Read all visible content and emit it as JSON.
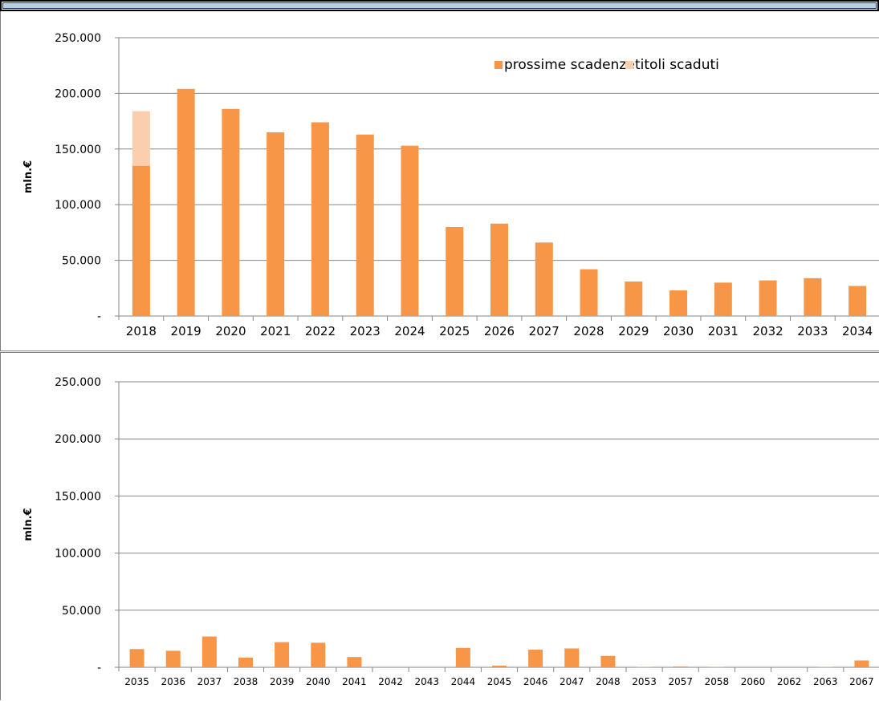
{
  "chart_data": [
    {
      "type": "bar",
      "stacked": true,
      "ylabel": "mln.€",
      "ylim": [
        0,
        250000
      ],
      "yticks": [
        "-",
        "50.000",
        "100.000",
        "150.000",
        "200.000",
        "250.000"
      ],
      "grid": true,
      "legend_position": "top-right",
      "categories": [
        "2018",
        "2019",
        "2020",
        "2021",
        "2022",
        "2023",
        "2024",
        "2025",
        "2026",
        "2027",
        "2028",
        "2029",
        "2030",
        "2031",
        "2032",
        "2033",
        "2034"
      ],
      "series": [
        {
          "name": "prossime scadenze",
          "color": "#f79646",
          "values": [
            135000,
            204000,
            186000,
            165000,
            174000,
            163000,
            153000,
            80000,
            83000,
            66000,
            42000,
            31000,
            23000,
            30000,
            32000,
            34000,
            27000
          ]
        },
        {
          "name": "titoli scaduti",
          "color": "#fbcfae",
          "values": [
            49000,
            0,
            0,
            0,
            0,
            0,
            0,
            0,
            0,
            0,
            0,
            0,
            0,
            0,
            0,
            0,
            0
          ]
        }
      ]
    },
    {
      "type": "bar",
      "ylabel": "mln.€",
      "ylim": [
        0,
        250000
      ],
      "yticks": [
        "-",
        "50.000",
        "100.000",
        "150.000",
        "200.000",
        "250.000"
      ],
      "grid": true,
      "categories": [
        "2035",
        "2036",
        "2037",
        "2038",
        "2039",
        "2040",
        "2041",
        "2042",
        "2043",
        "2044",
        "2045",
        "2046",
        "2047",
        "2048",
        "2053",
        "2057",
        "2058",
        "2060",
        "2062",
        "2063",
        "2067"
      ],
      "series": [
        {
          "name": "prossime scadenze",
          "color": "#f79646",
          "values": [
            16000,
            14500,
            27000,
            8500,
            22000,
            21500,
            9000,
            0,
            0,
            17000,
            1500,
            15500,
            16500,
            10000,
            300,
            800,
            300,
            0,
            0,
            300,
            6000
          ]
        }
      ]
    }
  ]
}
